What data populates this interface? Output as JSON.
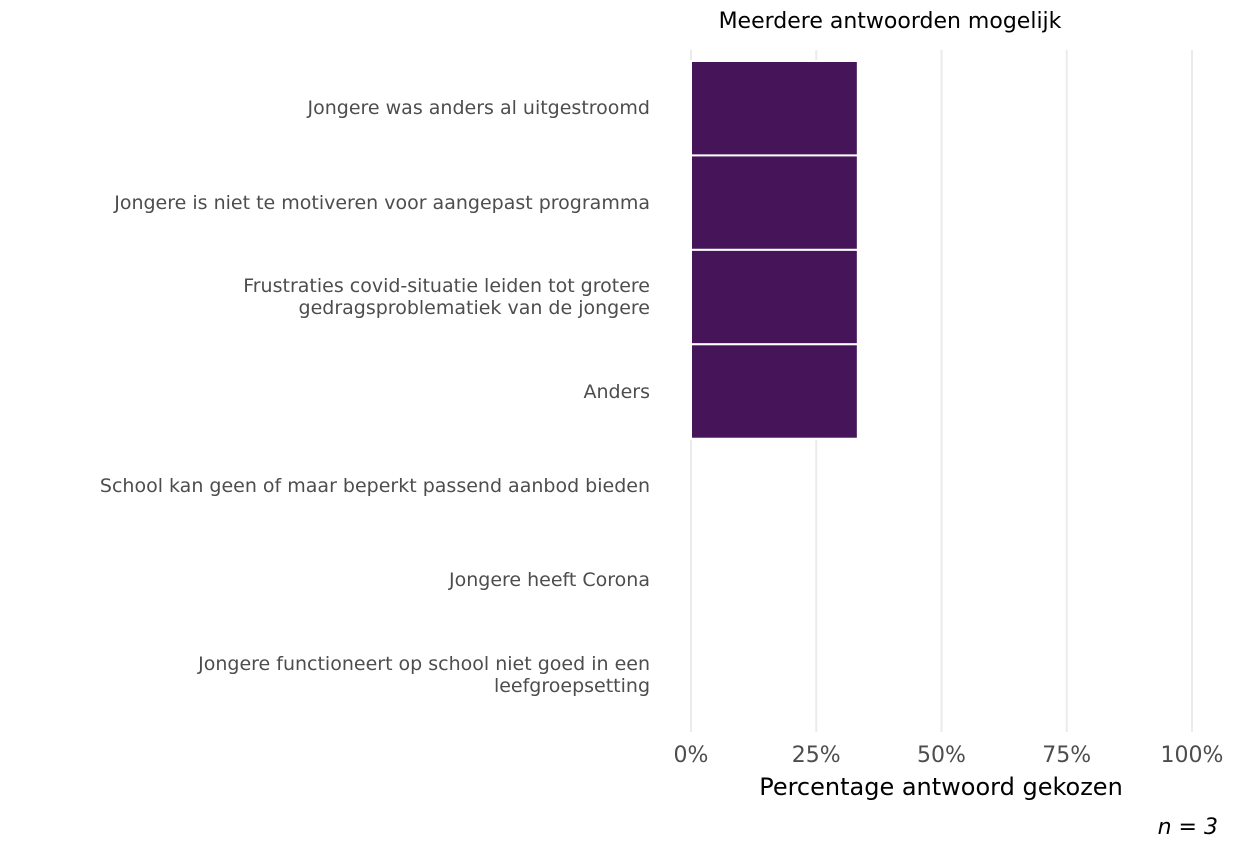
{
  "chart_data": {
    "type": "barh",
    "title": "Meerdere antwoorden mogelijk",
    "x_label": "Percentage antwoord gekozen",
    "annotation": "n = 3",
    "categories": [
      "Jongere was anders al uitgestroomd",
      "Jongere is niet te motiveren voor aangepast programma",
      "Frustraties covid-situatie leiden tot grotere\ngedragsproblematiek van de jongere",
      "Anders",
      "School kan geen of maar beperkt passend aanbod bieden",
      "Jongere heeft Corona",
      "Jongere functioneert op school niet goed in een\nleefgroepsetting"
    ],
    "values": [
      33.3,
      33.3,
      33.3,
      33.3,
      0,
      0,
      0
    ],
    "color": "#451459",
    "xlim": [
      0,
      100
    ],
    "xticks": [
      {
        "value": 0,
        "label": "0%"
      },
      {
        "value": 25,
        "label": "25%"
      },
      {
        "value": 50,
        "label": "50%"
      },
      {
        "value": 75,
        "label": "75%"
      },
      {
        "value": 100,
        "label": "100%"
      }
    ],
    "grid": true
  }
}
